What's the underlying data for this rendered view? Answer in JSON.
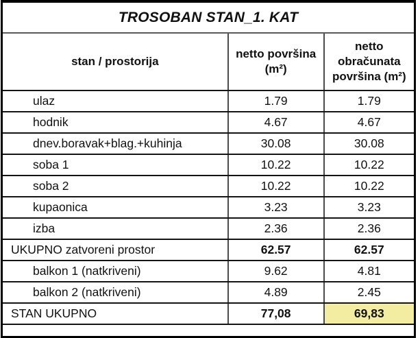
{
  "table": {
    "title": "TROSOBAN STAN_1. KAT",
    "headers": [
      "stan / prostorija",
      "netto površina (m²)",
      "netto obračunata površina (m²)"
    ],
    "rows": [
      {
        "label": "ulaz",
        "netto": "1.79",
        "obracunata": "1.79",
        "type": "room"
      },
      {
        "label": "hodnik",
        "netto": "4.67",
        "obracunata": "4.67",
        "type": "room"
      },
      {
        "label": "dnev.boravak+blag.+kuhinja",
        "netto": "30.08",
        "obracunata": "30.08",
        "type": "room"
      },
      {
        "label": "soba 1",
        "netto": "10.22",
        "obracunata": "10.22",
        "type": "room"
      },
      {
        "label": "soba 2",
        "netto": "10.22",
        "obracunata": "10.22",
        "type": "room"
      },
      {
        "label": "kupaonica",
        "netto": "3.23",
        "obracunata": "3.23",
        "type": "room"
      },
      {
        "label": "izba",
        "netto": "2.36",
        "obracunata": "2.36",
        "type": "room"
      },
      {
        "label": "UKUPNO zatvoreni prostor",
        "netto": "62.57",
        "obracunata": "62.57",
        "type": "subtotal"
      },
      {
        "label": "balkon 1 (natkriveni)",
        "netto": "9.62",
        "obracunata": "4.81",
        "type": "room"
      },
      {
        "label": "balkon 2 (natkriveni)",
        "netto": "4.89",
        "obracunata": "2.45",
        "type": "room"
      },
      {
        "label": "STAN UKUPNO",
        "netto": "77,08",
        "obracunata": "69,83",
        "type": "total"
      }
    ],
    "highlight_color": "#f2eda1"
  }
}
